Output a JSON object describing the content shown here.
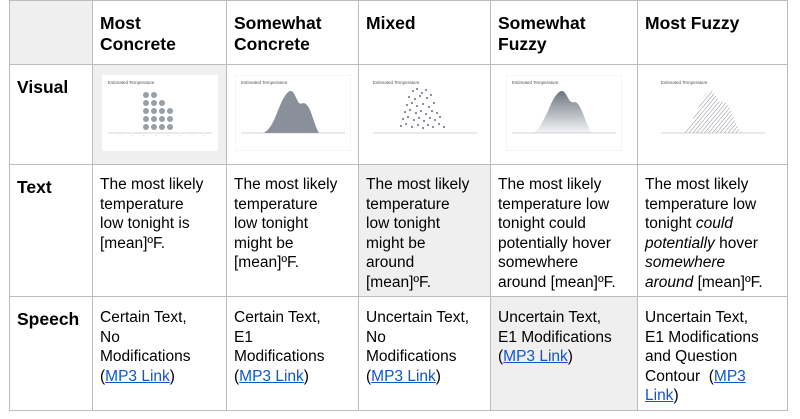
{
  "columns": [
    {
      "line1": "Most",
      "line2": "Concrete"
    },
    {
      "line1": "Somewhat",
      "line2": "Concrete"
    },
    {
      "line1": "Mixed",
      "line2": ""
    },
    {
      "line1": "Somewhat",
      "line2": "Fuzzy"
    },
    {
      "line1": "Most Fuzzy",
      "line2": ""
    }
  ],
  "rows": {
    "visual": "Visual",
    "text": "Text",
    "speech": "Speech"
  },
  "visual_title": "Estimated Temperature",
  "text_cells": [
    [
      "The most likely",
      "temperature",
      "low tonight is",
      "[mean]ºF."
    ],
    [
      "The most likely",
      "temperature",
      "low tonight",
      "might be",
      "[mean]ºF."
    ],
    [
      "The most likely",
      "temperature",
      "low tonight",
      "might be",
      "around",
      "[mean]ºF."
    ],
    [
      "The most likely",
      "temperature low",
      "tonight could",
      "potentially hover",
      "somewhere",
      "around [mean]ºF."
    ],
    {
      "l1": "The most likely",
      "l2": "temperature low",
      "l3a": "tonight ",
      "l3b": "could",
      "l4a": "potentially",
      "l4b": " hover",
      "l5": "somewhere",
      "l6a": "around",
      "l6b": " [mean]ºF."
    }
  ],
  "speech_cells": [
    {
      "l1": "Certain Text,",
      "l2": "No",
      "l3": "Modifications",
      "open": "(",
      "link": "MP3 Link",
      "close": ")"
    },
    {
      "l1": "Certain Text,",
      "l2": "E1",
      "l3": "Modifications",
      "open": "(",
      "link": "MP3 Link",
      "close": ")"
    },
    {
      "l1": "Uncertain Text,",
      "l2": "No",
      "l3": "Modifications",
      "open": "(",
      "link": "MP3 Link",
      "close": ")"
    },
    {
      "l1": "Uncertain Text,",
      "l2": "E1 Modifications",
      "open": "(",
      "link": "MP3 Link",
      "close": ")"
    },
    {
      "l1": "Uncertain Text,",
      "l2": "E1 Modifications",
      "l3": "and Question",
      "l4a": "Contour  (",
      "link": "MP3 Link",
      "close": ")"
    }
  ],
  "colors": {
    "border": "#bdbdbd",
    "shade": "#efefef",
    "link": "#1155cc",
    "mark": "#8a9099"
  }
}
